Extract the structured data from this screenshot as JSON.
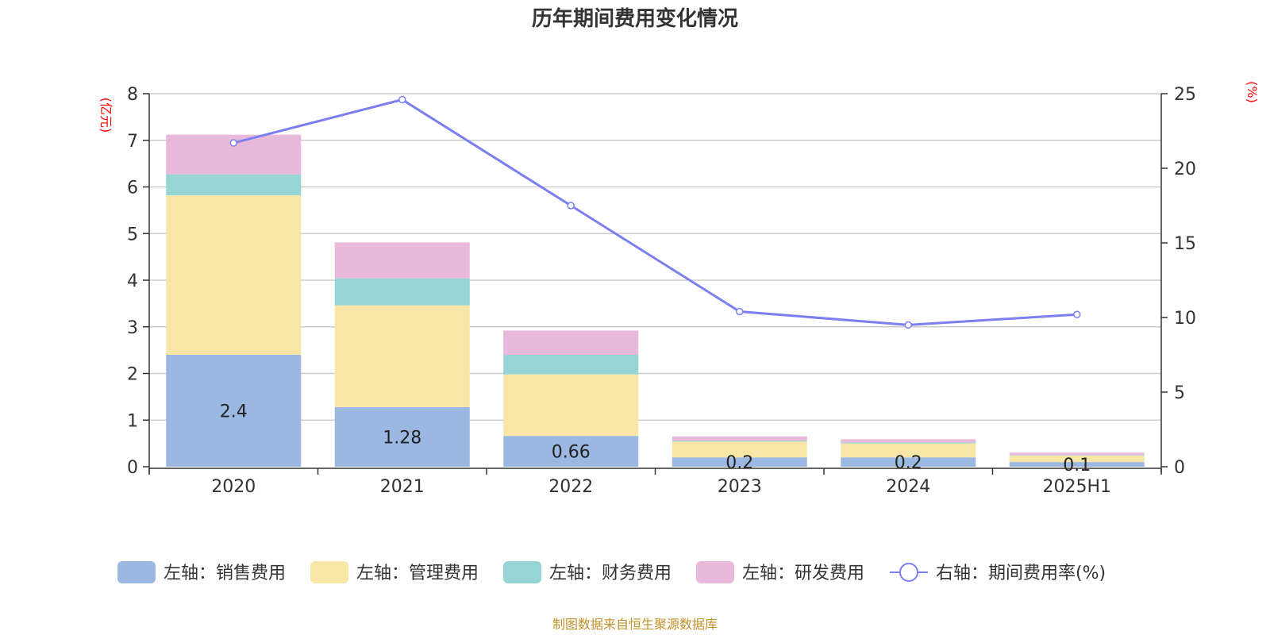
{
  "chart_data": {
    "type": "bar",
    "title": "历年期间费用变化情况",
    "categories": [
      "2020",
      "2021",
      "2022",
      "2023",
      "2024",
      "2025H1"
    ],
    "left_axis": {
      "unit": "(亿元)",
      "ylim": [
        0,
        8
      ],
      "ticks": [
        "0",
        "1",
        "2",
        "3",
        "4",
        "5",
        "6",
        "7",
        "8"
      ]
    },
    "right_axis": {
      "unit": "(%)",
      "ylim": [
        0,
        25
      ],
      "ticks": [
        "0",
        "5",
        "10",
        "15",
        "20",
        "25"
      ]
    },
    "stacked": true,
    "series": [
      {
        "name": "左轴：销售费用",
        "color": "#9bb8e3",
        "values": [
          2.4,
          1.28,
          0.66,
          0.2,
          0.2,
          0.1
        ],
        "labels": [
          "2.4",
          "1.28",
          "0.66",
          "0.2",
          "0.2",
          "0.1"
        ]
      },
      {
        "name": "左轴：管理费用",
        "color": "#f7e6a6",
        "values": [
          3.42,
          2.18,
          1.32,
          0.34,
          0.3,
          0.14
        ]
      },
      {
        "name": "左轴：财务费用",
        "color": "#97d4d4",
        "values": [
          0.45,
          0.58,
          0.42,
          0.02,
          0.02,
          0.01
        ]
      },
      {
        "name": "左轴：研发费用",
        "color": "#e8b9da",
        "values": [
          0.85,
          0.77,
          0.52,
          0.09,
          0.07,
          0.05
        ]
      }
    ],
    "line_series": {
      "name": "右轴：期间费用率(%)",
      "color": "#7b7ff0",
      "values": [
        21.7,
        24.6,
        17.5,
        10.4,
        9.5,
        10.2
      ]
    },
    "grid": true,
    "legend_position": "bottom"
  },
  "source_text": "制图数据来自恒生聚源数据库"
}
